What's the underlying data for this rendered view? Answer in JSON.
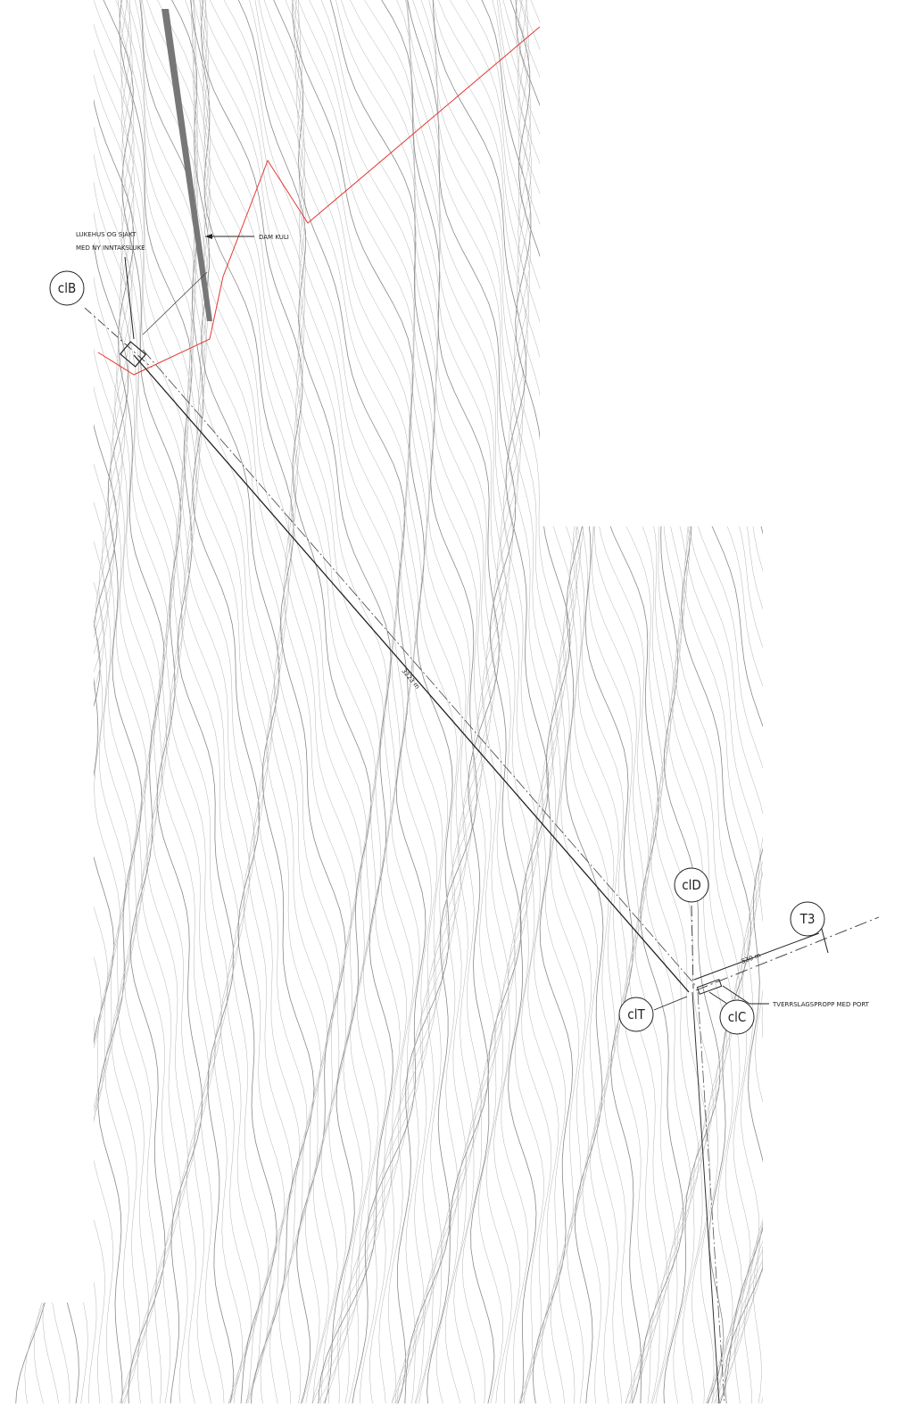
{
  "annotations": {
    "intake_line1": "LUKEHUS OG SJAKT",
    "intake_line2": "MED NY INNTAKSLUKE",
    "dam": "DAM KULI",
    "plug": "TVERRSLAGSPROPP MED PORT",
    "tunnel_length": "3223 m",
    "branch_length": "530 m"
  },
  "markers": [
    "clB",
    "clD",
    "T3",
    "clT",
    "clC"
  ]
}
